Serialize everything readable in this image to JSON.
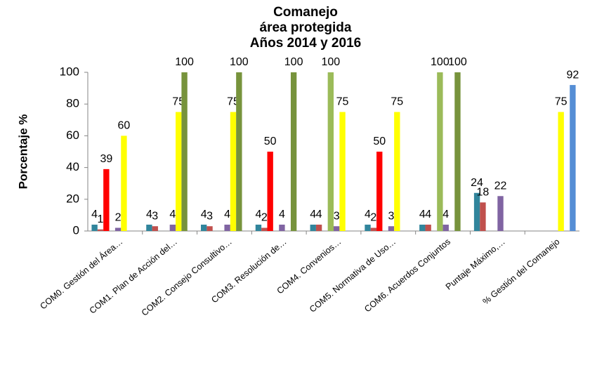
{
  "chart_data": {
    "type": "bar",
    "title": [
      "Comanejo",
      "área protegida",
      "Años 2014 y 2016"
    ],
    "y_label": "Porcentaje %",
    "categories": [
      "COM0. Gestión del Área…",
      "COM1. Plan de Acción del…",
      "COM2. Consejo Consultivo…",
      "COM3. Resolución de…",
      "COM4. Convenios…",
      "COM5. Normativa de Uso…",
      "COM6. Acuerdos Conjuntos",
      "Puntaje Máximo,…",
      "% Gestión del Comanejo"
    ],
    "series": [
      {
        "color": "#31859c",
        "values": [
          4,
          4,
          4,
          4,
          4,
          4,
          4,
          24,
          null
        ]
      },
      {
        "color": "#c0504d",
        "values": [
          1,
          3,
          3,
          2,
          4,
          2,
          4,
          18,
          null
        ]
      },
      {
        "color": "#ff0000",
        "values": [
          39,
          null,
          null,
          50,
          null,
          50,
          null,
          null,
          null
        ]
      },
      {
        "color": "#9bbb59",
        "values": [
          null,
          null,
          null,
          null,
          100,
          null,
          100,
          null,
          null
        ]
      },
      {
        "color": "#8064a2",
        "values": [
          2,
          4,
          4,
          4,
          3,
          3,
          4,
          22,
          null
        ]
      },
      {
        "color": "#ffff00",
        "values": [
          60,
          75,
          75,
          null,
          75,
          75,
          null,
          null,
          75
        ]
      },
      {
        "color": "#77933c",
        "values": [
          null,
          100,
          100,
          100,
          null,
          null,
          100,
          null,
          null
        ]
      },
      {
        "color": "#558ed5",
        "values": [
          null,
          null,
          null,
          null,
          null,
          null,
          null,
          null,
          92
        ]
      }
    ],
    "ylim": [
      0,
      100
    ],
    "yticks": [
      0,
      20,
      40,
      60,
      80,
      100
    ],
    "grid": false
  }
}
